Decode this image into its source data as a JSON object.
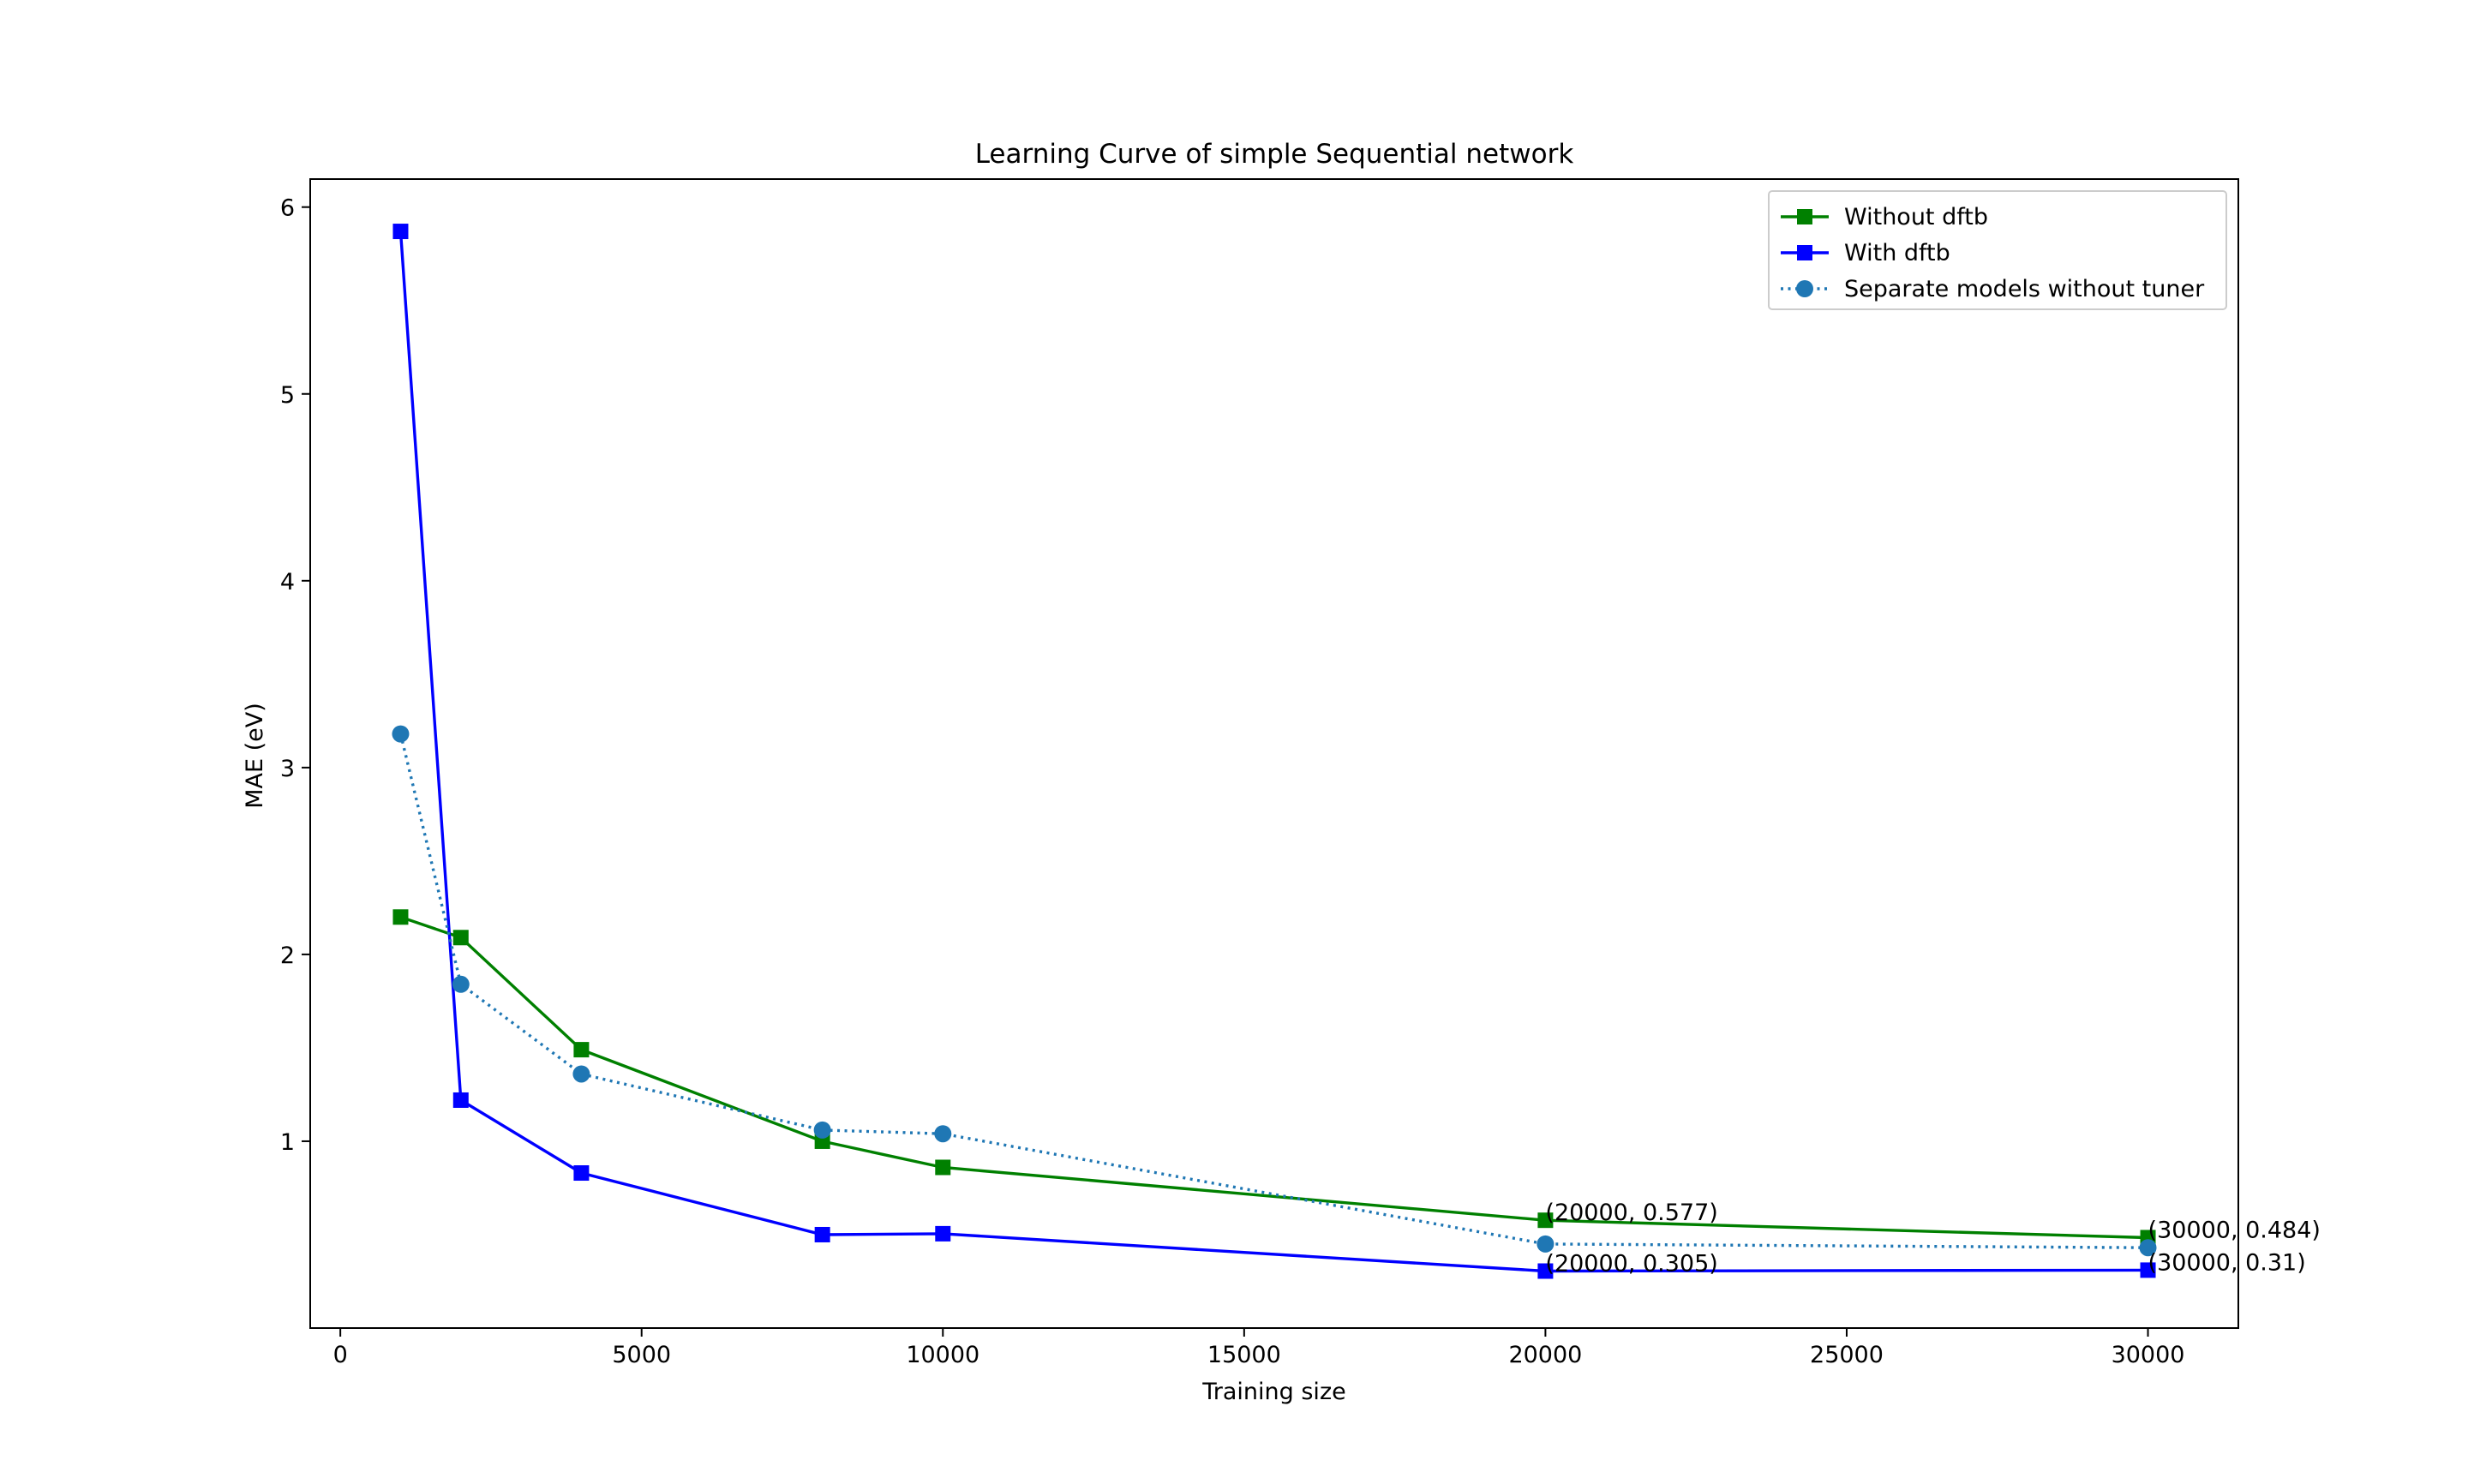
{
  "chart_data": {
    "type": "line",
    "title": "Learning Curve of simple Sequential network",
    "xlabel": "Training size",
    "ylabel": "MAE (eV)",
    "xlim": [
      -500,
      31500
    ],
    "ylim": [
      0.0,
      6.15
    ],
    "xticks": [
      0,
      5000,
      10000,
      15000,
      20000,
      25000,
      30000
    ],
    "yticks": [
      1,
      2,
      3,
      4,
      5,
      6
    ],
    "grid": false,
    "legend_position": "top-right",
    "series": [
      {
        "name": "Without dftb",
        "color": "#008000",
        "marker": "square",
        "linestyle": "solid",
        "x": [
          1000,
          2000,
          4000,
          8000,
          10000,
          20000,
          30000
        ],
        "y": [
          2.2,
          2.09,
          1.49,
          1.0,
          0.86,
          0.577,
          0.484
        ]
      },
      {
        "name": "With dftb",
        "color": "#0000ff",
        "marker": "square",
        "linestyle": "solid",
        "x": [
          1000,
          2000,
          4000,
          8000,
          10000,
          20000,
          30000
        ],
        "y": [
          5.87,
          1.22,
          0.83,
          0.5,
          0.505,
          0.305,
          0.31
        ]
      },
      {
        "name": "Separate models without tuner",
        "color": "#1f77b4",
        "marker": "circle",
        "linestyle": "dotted",
        "x": [
          1000,
          2000,
          4000,
          8000,
          10000,
          20000,
          30000
        ],
        "y": [
          3.18,
          1.84,
          1.36,
          1.06,
          1.04,
          0.45,
          0.43
        ]
      }
    ],
    "annotations": [
      {
        "text": "(20000, 0.577)",
        "x": 20000,
        "y": 0.577
      },
      {
        "text": "(20000, 0.305)",
        "x": 20000,
        "y": 0.305
      },
      {
        "text": "(30000, 0.484)",
        "x": 30000,
        "y": 0.484
      },
      {
        "text": "(30000, 0.31)",
        "x": 30000,
        "y": 0.31
      }
    ]
  }
}
